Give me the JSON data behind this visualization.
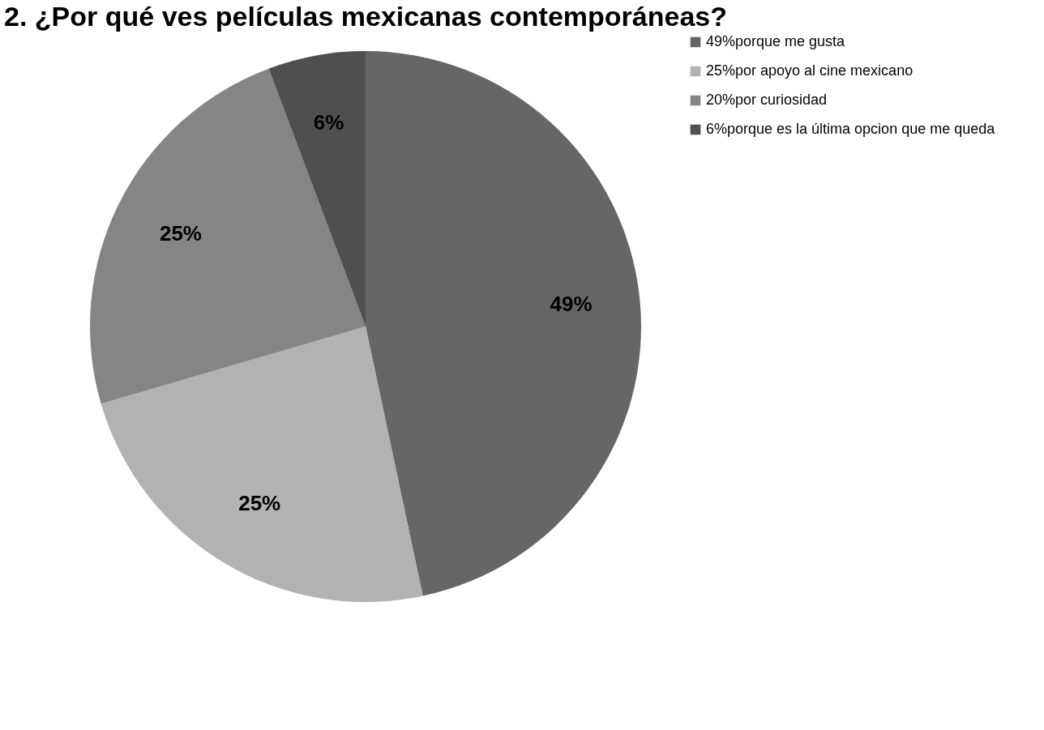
{
  "chart_data": {
    "type": "pie",
    "title": "2. ¿Por qué ves películas mexicanas contemporáneas?",
    "categories": [
      "49%porque me gusta",
      "25%por apoyo al cine mexicano",
      "20%por curiosidad",
      "6%porque es la última opcion que me queda"
    ],
    "values": [
      49,
      25,
      25,
      6
    ],
    "value_labels": [
      "49%",
      "25%",
      "25%",
      "6%"
    ],
    "colors": [
      "#666666",
      "#b2b2b2",
      "#858585",
      "#4f4f4f"
    ],
    "legend": "right"
  }
}
